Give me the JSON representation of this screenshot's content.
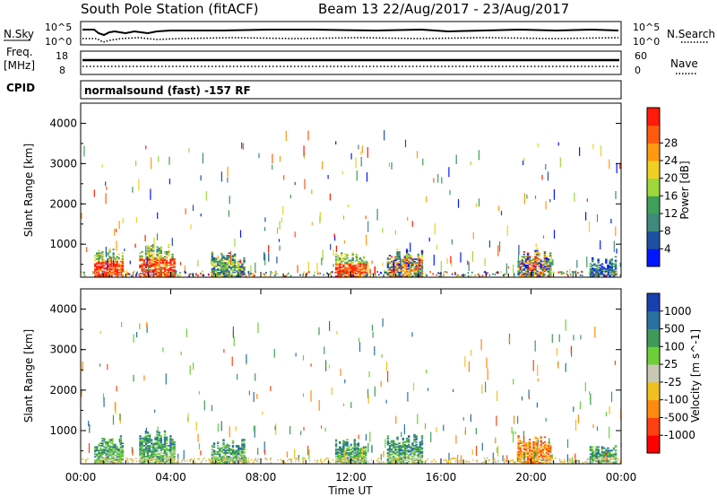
{
  "header": {
    "station": "South Pole Station (fitACF)",
    "beam_dates": "Beam 13 22/Aug/2017 - 23/Aug/2017"
  },
  "top_panel": {
    "left_label": "N.Sky",
    "right_label": "N.Search",
    "left_ticks": [
      "10^5",
      "10^0"
    ],
    "right_ticks": [
      "10^5",
      "10^0"
    ]
  },
  "freq_panel": {
    "left_label_1": "Freq.",
    "left_label_2": "[MHz]",
    "right_label": "Nave",
    "left_ticks": [
      "18",
      "8"
    ],
    "right_ticks": [
      "60",
      "0"
    ]
  },
  "cpid": {
    "label": "CPID",
    "text": "normalsound (fast) -157 RF"
  },
  "time_axis": {
    "label": "Time UT",
    "ticks": [
      "00:00",
      "04:00",
      "08:00",
      "12:00",
      "16:00",
      "20:00",
      "00:00"
    ]
  },
  "chart_data": [
    {
      "type": "heatmap",
      "name": "power",
      "ylabel": "Slant Range [km]",
      "ylim": [
        180,
        4500
      ],
      "xlim_hours": [
        0,
        24
      ],
      "yticks": [
        "1000",
        "2000",
        "3000",
        "4000"
      ],
      "colorbar_label": "Power [dB]",
      "colorbar_ticks": [
        "4",
        "8",
        "12",
        "16",
        "20",
        "24",
        "28"
      ],
      "colorbar_colors": [
        "#0018ff",
        "#1f4fa3",
        "#3f8a7a",
        "#3fa05a",
        "#9ed83a",
        "#f0d020",
        "#ff9a10",
        "#ff5a10",
        "#ff1a0a"
      ],
      "echo_regions": [
        {
          "start": 0.6,
          "end": 1.9,
          "max_range": 900,
          "dominant": "high"
        },
        {
          "start": 2.6,
          "end": 4.2,
          "max_range": 1000,
          "dominant": "high"
        },
        {
          "start": 5.8,
          "end": 7.3,
          "max_range": 800,
          "dominant": "mid"
        },
        {
          "start": 11.3,
          "end": 12.7,
          "max_range": 800,
          "dominant": "high"
        },
        {
          "start": 13.6,
          "end": 15.2,
          "max_range": 900,
          "dominant": "mixed"
        },
        {
          "start": 19.4,
          "end": 20.9,
          "max_range": 900,
          "dominant": "mixed"
        },
        {
          "start": 22.6,
          "end": 23.8,
          "max_range": 700,
          "dominant": "low"
        }
      ]
    },
    {
      "type": "heatmap",
      "name": "velocity",
      "ylabel": "Slant Range [km]",
      "ylim": [
        180,
        4500
      ],
      "xlim_hours": [
        0,
        24
      ],
      "yticks": [
        "1000",
        "2000",
        "3000",
        "4000"
      ],
      "colorbar_label": "Velocity [m s^-1]",
      "colorbar_ticks": [
        "1000",
        "500",
        "100",
        "25",
        "-25",
        "-100",
        "-500",
        "-1000"
      ],
      "colorbar_colors": [
        "#1a3fb0",
        "#2a70a0",
        "#3f9a5a",
        "#6ccf3a",
        "#c8c8b4",
        "#f0c020",
        "#ff8a10",
        "#ff4010",
        "#ff0000"
      ],
      "echo_regions": [
        {
          "start": 0.6,
          "end": 1.9,
          "max_range": 900,
          "dominant": "positive"
        },
        {
          "start": 2.6,
          "end": 4.2,
          "max_range": 1000,
          "dominant": "positive"
        },
        {
          "start": 5.8,
          "end": 7.3,
          "max_range": 800,
          "dominant": "positive"
        },
        {
          "start": 11.3,
          "end": 12.7,
          "max_range": 800,
          "dominant": "positive"
        },
        {
          "start": 13.6,
          "end": 15.2,
          "max_range": 900,
          "dominant": "positive"
        },
        {
          "start": 19.4,
          "end": 20.9,
          "max_range": 900,
          "dominant": "negative"
        },
        {
          "start": 22.6,
          "end": 23.8,
          "max_range": 700,
          "dominant": "positive"
        }
      ]
    }
  ]
}
